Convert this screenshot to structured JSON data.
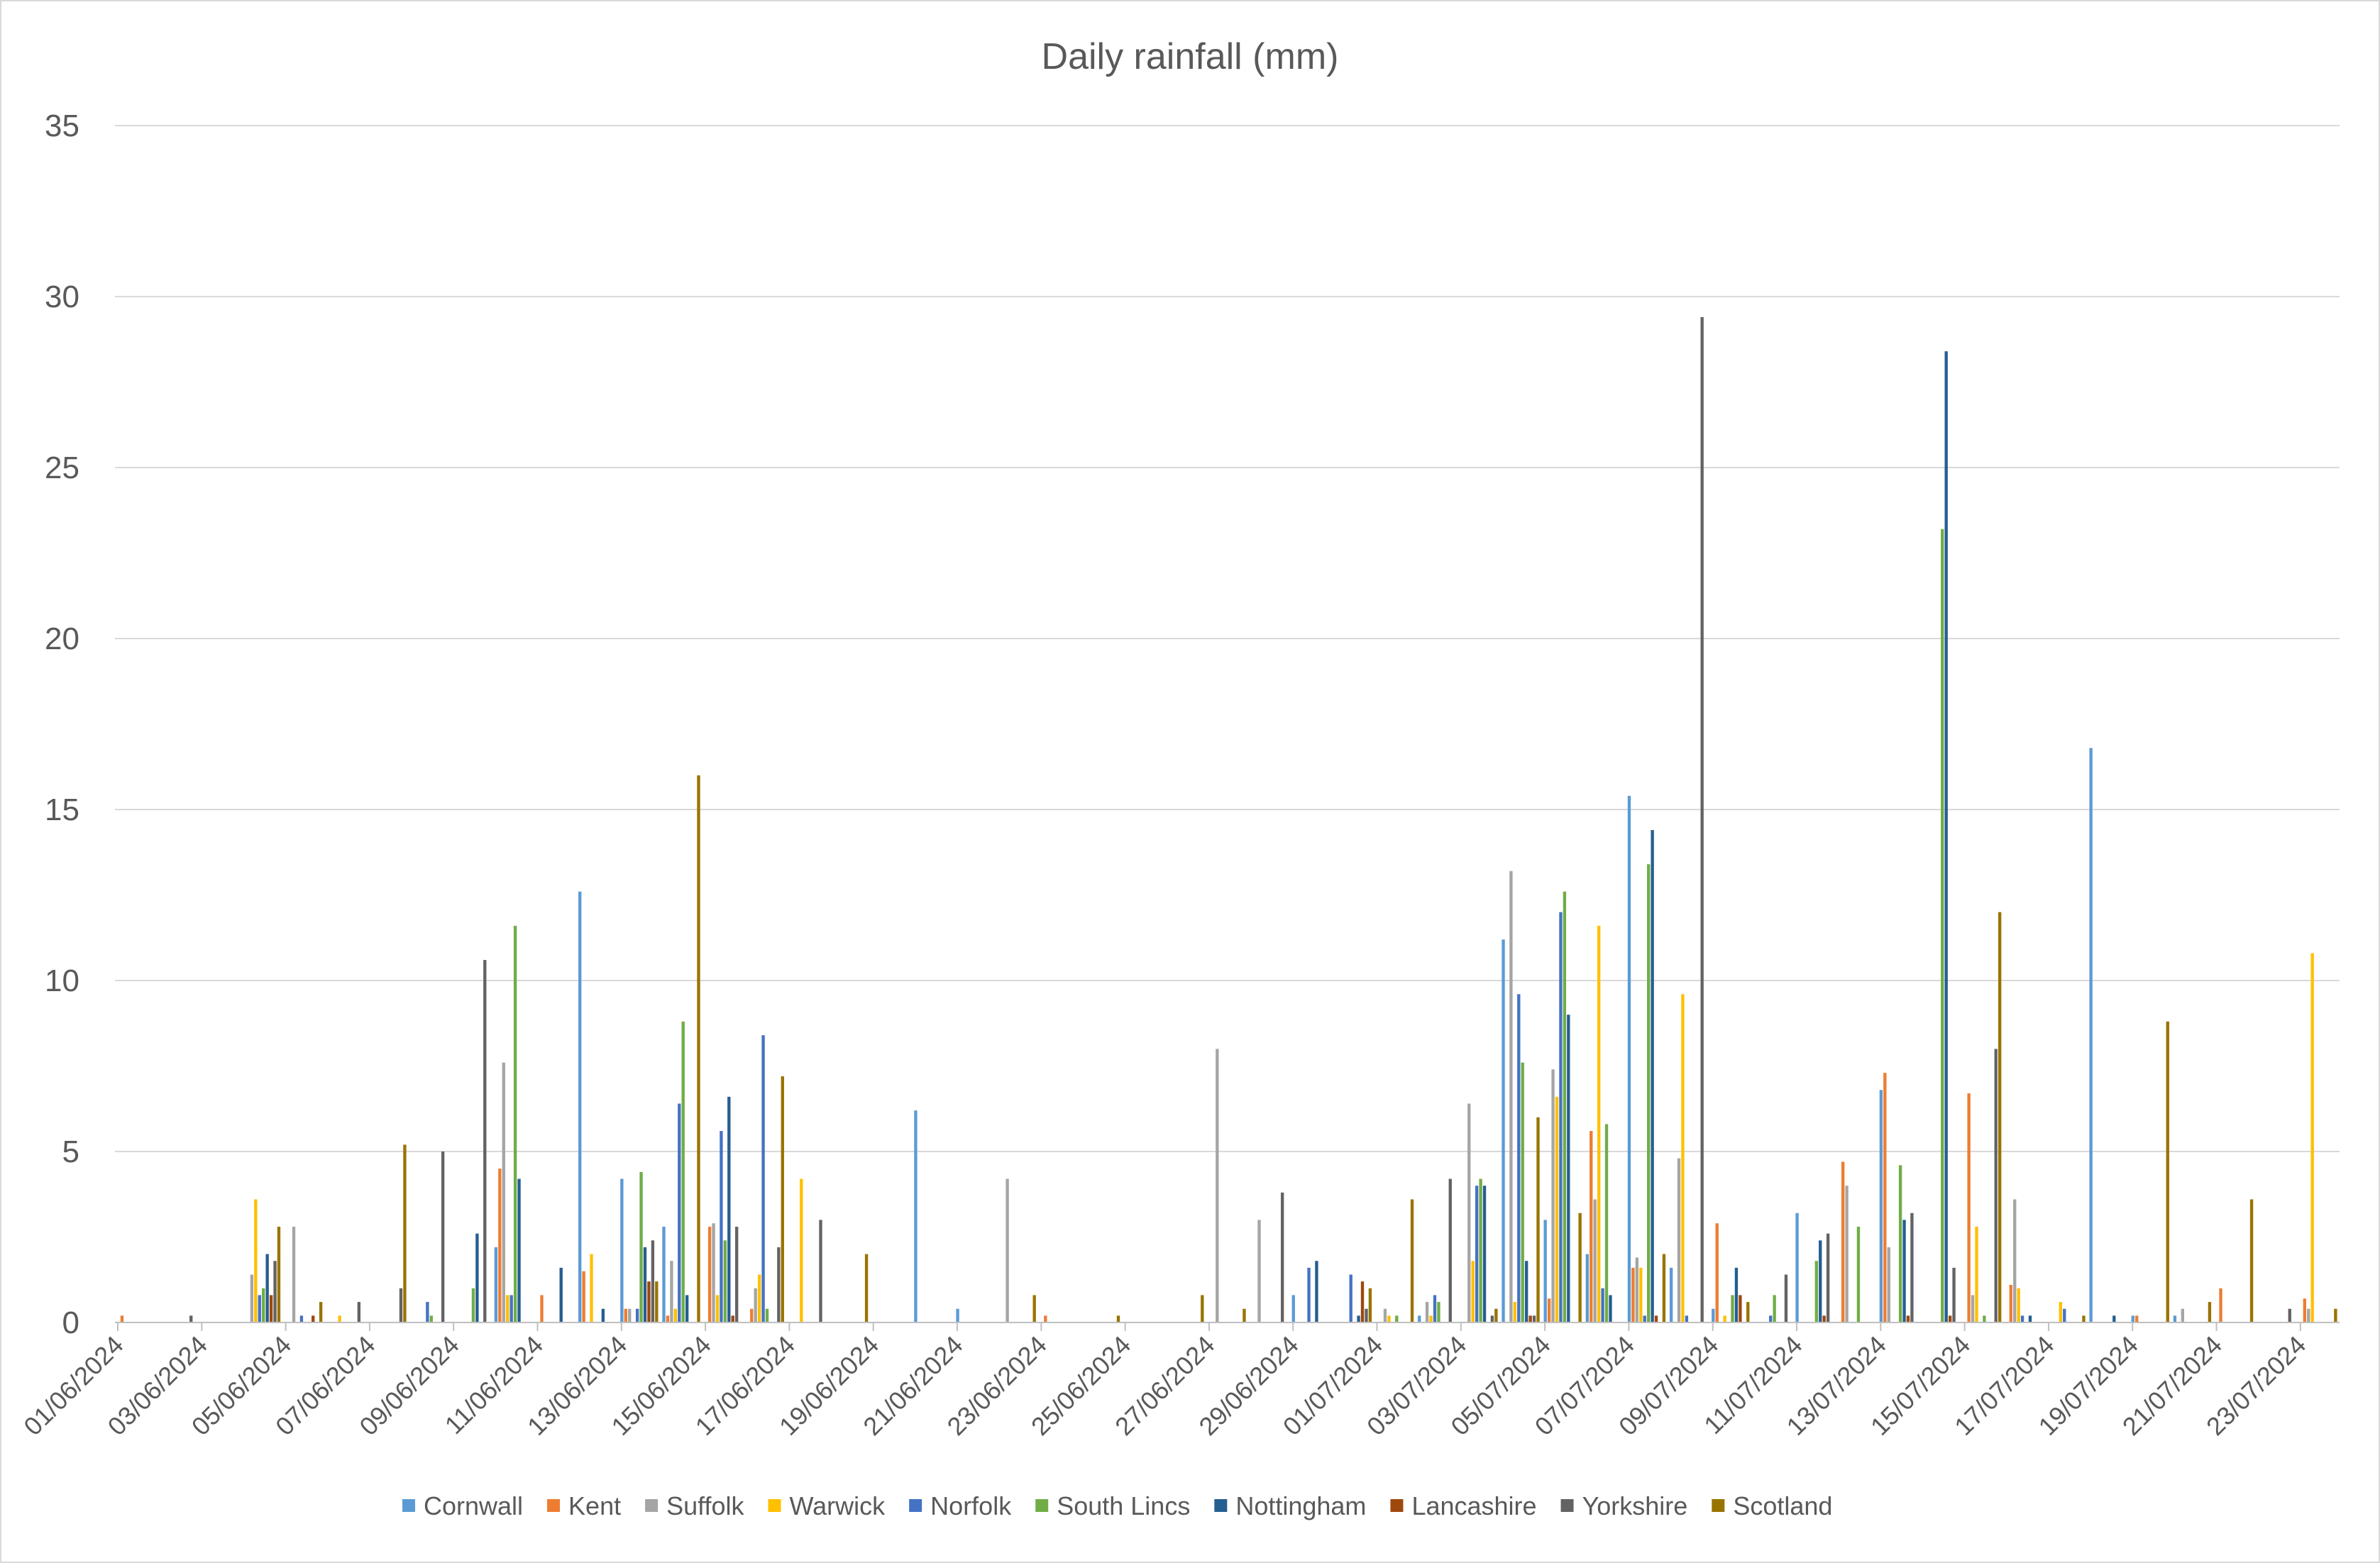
{
  "chart_data": {
    "type": "bar",
    "title": "Daily rainfall (mm)",
    "xlabel": "",
    "ylabel": "",
    "ylim": [
      0,
      35
    ],
    "yticks": [
      0,
      5,
      10,
      15,
      20,
      25,
      30,
      35
    ],
    "grid": true,
    "legend_position": "bottom",
    "categories": [
      "01/06/2024",
      "02/06/2024",
      "03/06/2024",
      "04/06/2024",
      "05/06/2024",
      "06/06/2024",
      "07/06/2024",
      "08/06/2024",
      "09/06/2024",
      "10/06/2024",
      "11/06/2024",
      "12/06/2024",
      "13/06/2024",
      "14/06/2024",
      "15/06/2024",
      "16/06/2024",
      "17/06/2024",
      "18/06/2024",
      "19/06/2024",
      "20/06/2024",
      "21/06/2024",
      "22/06/2024",
      "23/06/2024",
      "24/06/2024",
      "25/06/2024",
      "26/06/2024",
      "27/06/2024",
      "28/06/2024",
      "29/06/2024",
      "30/06/2024",
      "01/07/2024",
      "02/07/2024",
      "03/07/2024",
      "04/07/2024",
      "05/07/2024",
      "06/07/2024",
      "07/07/2024",
      "08/07/2024",
      "09/07/2024",
      "10/07/2024",
      "11/07/2024",
      "12/07/2024",
      "13/07/2024",
      "14/07/2024",
      "15/07/2024",
      "16/07/2024",
      "17/07/2024",
      "18/07/2024",
      "19/07/2024",
      "20/07/2024",
      "21/07/2024",
      "22/07/2024",
      "23/07/2024"
    ],
    "x_tick_labels": [
      "01/06/2024",
      "03/06/2024",
      "05/06/2024",
      "07/06/2024",
      "09/06/2024",
      "11/06/2024",
      "13/06/2024",
      "15/06/2024",
      "17/06/2024",
      "19/06/2024",
      "21/06/2024",
      "23/06/2024",
      "25/06/2024",
      "27/06/2024",
      "29/06/2024",
      "01/07/2024",
      "03/07/2024",
      "05/07/2024",
      "07/07/2024",
      "09/07/2024",
      "11/07/2024",
      "13/07/2024",
      "15/07/2024",
      "17/07/2024",
      "19/07/2024",
      "21/07/2024",
      "23/07/2024"
    ],
    "series": [
      {
        "name": "Cornwall",
        "color": "#5b9bd5",
        "values": [
          0,
          0,
          0,
          0,
          0,
          0,
          0,
          0,
          0,
          2.2,
          0,
          12.6,
          4.2,
          2.8,
          0,
          0,
          0,
          0,
          0,
          6.2,
          0.4,
          0,
          0,
          0,
          0,
          0,
          0,
          0,
          0.8,
          0,
          0,
          0.2,
          0,
          11.2,
          3.0,
          2.0,
          15.4,
          1.6,
          0.4,
          0,
          3.2,
          0,
          6.8,
          0,
          0,
          0,
          0,
          16.8,
          0.2,
          0.2,
          0,
          0,
          0
        ]
      },
      {
        "name": "Kent",
        "color": "#ed7d31",
        "values": [
          0.2,
          0,
          0,
          0,
          0,
          0,
          0,
          0,
          0,
          4.5,
          0.8,
          1.5,
          0.4,
          0.2,
          2.8,
          0.4,
          0,
          0,
          0,
          0,
          0,
          0,
          0.2,
          0,
          0,
          0,
          0,
          0,
          0,
          0,
          0,
          0,
          0,
          0,
          0.7,
          5.6,
          1.6,
          0,
          2.9,
          0,
          0,
          4.7,
          7.3,
          0,
          6.7,
          1.1,
          0,
          0,
          0.2,
          0,
          1.0,
          0,
          0.7
        ]
      },
      {
        "name": "Suffolk",
        "color": "#a5a5a5",
        "values": [
          0,
          0,
          0,
          1.4,
          2.8,
          0,
          0,
          0,
          0,
          7.6,
          0,
          0,
          0.4,
          1.8,
          2.9,
          1.0,
          0,
          0,
          0,
          0,
          0,
          4.2,
          0,
          0,
          0,
          0,
          8.0,
          3.0,
          0,
          0,
          0.4,
          0.6,
          6.4,
          13.2,
          7.4,
          3.6,
          1.9,
          4.8,
          0,
          0,
          0,
          4.0,
          2.2,
          0,
          0.8,
          3.6,
          0,
          0,
          0,
          0.4,
          0,
          0,
          0.4
        ]
      },
      {
        "name": "Warwick",
        "color": "#ffc000",
        "values": [
          0,
          0,
          0,
          3.6,
          0,
          0.2,
          0,
          0,
          0,
          0.8,
          0,
          2.0,
          0,
          0.4,
          0.8,
          1.4,
          4.2,
          0,
          0,
          0,
          0,
          0,
          0,
          0,
          0,
          0,
          0,
          0,
          0,
          0,
          0.2,
          0.2,
          1.8,
          0.6,
          6.6,
          11.6,
          1.6,
          9.6,
          0.2,
          0,
          0,
          0,
          0,
          0,
          2.8,
          1.0,
          0.6,
          0,
          0,
          0,
          0,
          0,
          10.8
        ]
      },
      {
        "name": "Norfolk",
        "color": "#4472c4",
        "values": [
          0,
          0,
          0,
          0.8,
          0.2,
          0,
          0,
          0.6,
          0,
          0.8,
          0,
          0,
          0.4,
          6.4,
          5.6,
          8.4,
          0,
          0,
          0,
          0,
          0,
          0,
          0,
          0,
          0,
          0,
          0,
          0,
          1.6,
          1.4,
          0,
          0.8,
          4.0,
          9.6,
          12.0,
          1.0,
          0.2,
          0.2,
          0,
          0.2,
          0,
          0,
          0,
          0,
          0,
          0.2,
          0.4,
          0,
          0,
          0,
          0,
          0,
          0
        ]
      },
      {
        "name": "South Lincs",
        "color": "#70ad47",
        "values": [
          0,
          0,
          0,
          1.0,
          0,
          0,
          0,
          0.2,
          1.0,
          11.6,
          0,
          0,
          4.4,
          8.8,
          2.4,
          0.4,
          0,
          0,
          0,
          0,
          0,
          0,
          0,
          0,
          0,
          0,
          0,
          0,
          0,
          0,
          0.2,
          0.6,
          4.2,
          7.6,
          12.6,
          5.8,
          13.4,
          0,
          0.8,
          0.8,
          1.8,
          2.8,
          4.6,
          23.2,
          0.2,
          0,
          0,
          0,
          0,
          0,
          0,
          0,
          0
        ]
      },
      {
        "name": "Nottingham",
        "color": "#255e91",
        "values": [
          0,
          0,
          0,
          2.0,
          0,
          0,
          0,
          0,
          2.6,
          4.2,
          1.6,
          0.4,
          2.2,
          0.8,
          6.6,
          0,
          0,
          0,
          0,
          0,
          0,
          0,
          0,
          0,
          0,
          0,
          0,
          0,
          1.8,
          0.2,
          0,
          0,
          4.0,
          1.8,
          9.0,
          0.8,
          14.4,
          0,
          1.6,
          0,
          2.4,
          0,
          3.0,
          28.4,
          0,
          0.2,
          0,
          0.2,
          0,
          0,
          0,
          0,
          0
        ]
      },
      {
        "name": "Lancashire",
        "color": "#9e480e",
        "values": [
          0,
          0,
          0,
          0.8,
          0.2,
          0,
          0,
          0,
          0,
          0,
          0,
          0,
          1.2,
          0,
          0.2,
          0,
          0,
          0,
          0,
          0,
          0,
          0,
          0,
          0,
          0,
          0,
          0,
          0,
          0,
          1.2,
          0,
          0,
          0,
          0.2,
          0,
          0,
          0.2,
          0,
          0.8,
          0,
          0.2,
          0,
          0.2,
          0.2,
          0,
          0,
          0,
          0,
          0,
          0,
          0,
          0,
          0
        ]
      },
      {
        "name": "Yorkshire",
        "color": "#636363",
        "values": [
          0,
          0.2,
          0,
          1.8,
          0,
          0.6,
          1.0,
          5.0,
          10.6,
          0,
          0,
          0,
          2.4,
          0,
          2.8,
          2.2,
          3.0,
          0,
          0,
          0,
          0,
          0,
          0,
          0,
          0,
          0,
          0,
          3.8,
          0,
          0.4,
          0,
          4.2,
          0.2,
          0.2,
          0,
          0,
          0,
          29.4,
          0,
          1.4,
          2.6,
          0,
          3.2,
          1.6,
          8.0,
          0,
          0,
          0,
          0,
          0,
          0,
          0.4,
          0
        ]
      },
      {
        "name": "Scotland",
        "color": "#997300",
        "values": [
          0,
          0,
          0,
          2.8,
          0.6,
          0,
          5.2,
          0,
          0,
          0,
          0,
          0,
          1.2,
          16.0,
          0,
          7.2,
          0,
          2.0,
          0,
          0,
          0,
          0.8,
          0,
          0.2,
          0,
          0.8,
          0.4,
          0,
          0,
          1.0,
          3.6,
          0,
          0.4,
          6.0,
          3.2,
          0,
          2.0,
          0,
          0.6,
          0,
          0,
          0,
          0,
          0,
          12.0,
          0,
          0.2,
          0,
          8.8,
          0.6,
          3.6,
          0,
          0.4
        ]
      }
    ]
  }
}
